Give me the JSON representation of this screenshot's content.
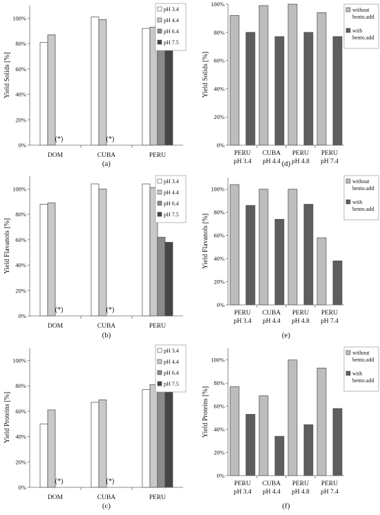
{
  "colors": {
    "ph34": "#ffffff",
    "ph44": "#c9c9c9",
    "ph64": "#8a8a8a",
    "ph75": "#454545",
    "without": "#bdbdbd",
    "with": "#5e5e5e",
    "stroke": "#444444",
    "axis": "#666666"
  },
  "chart_data": [
    {
      "id": "a",
      "panel_label": "(a)",
      "type": "bar",
      "ylabel": "Yield Solids [%]",
      "ylim": [
        0,
        110
      ],
      "yticks": [
        0,
        20,
        40,
        60,
        80,
        100
      ],
      "ytick_labels": [
        "0%",
        "20%",
        "40%",
        "60%",
        "80%",
        "100%"
      ],
      "categories": [
        "DOM",
        "CUBA",
        "PERU"
      ],
      "series": [
        {
          "name": "pH 3.4",
          "color_key": "ph34",
          "values": [
            81,
            101,
            92
          ]
        },
        {
          "name": "pH 4.4",
          "color_key": "ph44",
          "values": [
            87,
            99,
            93
          ]
        },
        {
          "name": "pH 6.4",
          "color_key": "ph64",
          "values": [
            null,
            null,
            95
          ]
        },
        {
          "name": "pH 7.5",
          "color_key": "ph75",
          "values": [
            null,
            null,
            94
          ]
        }
      ],
      "annotations": [
        "(*)",
        "(*)"
      ],
      "legend_position": "top-right"
    },
    {
      "id": "b",
      "panel_label": "(b)",
      "type": "bar",
      "ylabel": "Yield Flavanols [%]",
      "ylim": [
        0,
        110
      ],
      "yticks": [
        0,
        20,
        40,
        60,
        80,
        100
      ],
      "ytick_labels": [
        "0%",
        "20%",
        "40%",
        "60%",
        "80%",
        "100%"
      ],
      "categories": [
        "DOM",
        "CUBA",
        "PERU"
      ],
      "series": [
        {
          "name": "pH 3.4",
          "color_key": "ph34",
          "values": [
            88,
            104,
            104
          ]
        },
        {
          "name": "pH 4.4",
          "color_key": "ph44",
          "values": [
            89,
            100,
            101
          ]
        },
        {
          "name": "pH 6.4",
          "color_key": "ph64",
          "values": [
            null,
            null,
            62
          ]
        },
        {
          "name": "pH 7.5",
          "color_key": "ph75",
          "values": [
            null,
            null,
            58
          ]
        }
      ],
      "annotations": [
        "(*)",
        "(*)"
      ],
      "legend_position": "top-right"
    },
    {
      "id": "c",
      "panel_label": "(c)",
      "type": "bar",
      "ylabel": "Yield Proteins [%]",
      "ylim": [
        0,
        110
      ],
      "yticks": [
        0,
        20,
        40,
        60,
        80,
        100
      ],
      "ytick_labels": [
        "0%",
        "20%",
        "40%",
        "60%",
        "80%",
        "100%"
      ],
      "categories": [
        "DOM",
        "CUBA",
        "PERU"
      ],
      "series": [
        {
          "name": "pH 3.4",
          "color_key": "ph34",
          "values": [
            50,
            67,
            77
          ]
        },
        {
          "name": "pH 4.4",
          "color_key": "ph44",
          "values": [
            61,
            69,
            81
          ]
        },
        {
          "name": "pH 6.4",
          "color_key": "ph64",
          "values": [
            null,
            null,
            93
          ]
        },
        {
          "name": "pH 7.5",
          "color_key": "ph75",
          "values": [
            null,
            null,
            93
          ]
        }
      ],
      "annotations": [
        "(*)",
        "(*)"
      ],
      "legend_position": "top-right"
    },
    {
      "id": "d",
      "panel_label": "(d)",
      "type": "bar",
      "ylabel": "Yield Solids [%]",
      "ylim": [
        0,
        100
      ],
      "yticks": [
        0,
        20,
        40,
        60,
        80,
        100
      ],
      "ytick_labels": [
        "0%",
        "20%",
        "40%",
        "60%",
        "80%",
        "100%"
      ],
      "categories": [
        [
          "PERU",
          "pH 3.4"
        ],
        [
          "CUBA",
          "pH 4.4"
        ],
        [
          "PERU",
          "pH 4.8"
        ],
        [
          "PERU",
          "pH 7.4"
        ]
      ],
      "series": [
        {
          "name": "without bento.add",
          "legend_lines": [
            "without",
            "bento.add"
          ],
          "color_key": "without",
          "values": [
            92,
            99,
            100,
            94
          ]
        },
        {
          "name": "with bento.add",
          "legend_lines": [
            "with",
            "bento.add"
          ],
          "color_key": "with",
          "values": [
            80,
            77,
            80,
            77
          ]
        }
      ],
      "legend_position": "top-right"
    },
    {
      "id": "e",
      "panel_label": "(e)",
      "type": "bar",
      "ylabel": "Yield Flavanols [%]",
      "ylim": [
        0,
        110
      ],
      "yticks": [
        0,
        20,
        40,
        60,
        80,
        100
      ],
      "ytick_labels": [
        "0%",
        "20%",
        "40%",
        "60%",
        "80%",
        "100%"
      ],
      "categories": [
        [
          "PERU",
          "pH 3.4"
        ],
        [
          "CUBA",
          "pH 4.4"
        ],
        [
          "PERU",
          "pH 4.8"
        ],
        [
          "PERU",
          "pH 7.4"
        ]
      ],
      "series": [
        {
          "name": "without bento.add",
          "legend_lines": [
            "without",
            "bento.add"
          ],
          "color_key": "without",
          "values": [
            104,
            100,
            100,
            58
          ]
        },
        {
          "name": "with bento.add",
          "legend_lines": [
            "with",
            "bento.add"
          ],
          "color_key": "with",
          "values": [
            86,
            74,
            87,
            38
          ]
        }
      ],
      "legend_position": "top-right"
    },
    {
      "id": "f",
      "panel_label": "(f)",
      "type": "bar",
      "ylabel": "Yield Proteins [%]",
      "ylim": [
        0,
        110
      ],
      "yticks": [
        0,
        20,
        40,
        60,
        80,
        100
      ],
      "ytick_labels": [
        "0%",
        "20%",
        "40%",
        "60%",
        "80%",
        "100%"
      ],
      "categories": [
        [
          "PERU",
          "pH 3.4"
        ],
        [
          "CUBA",
          "pH 4.4"
        ],
        [
          "PERU",
          "pH 4.8"
        ],
        [
          "PERU",
          "pH 7.4"
        ]
      ],
      "series": [
        {
          "name": "without bento.add",
          "legend_lines": [
            "without",
            "bento.add"
          ],
          "color_key": "without",
          "values": [
            77,
            69,
            100,
            93
          ]
        },
        {
          "name": "with bento.add",
          "legend_lines": [
            "with",
            "bento.add"
          ],
          "color_key": "with",
          "values": [
            53,
            34,
            44,
            58
          ]
        }
      ],
      "legend_position": "top-right"
    }
  ]
}
